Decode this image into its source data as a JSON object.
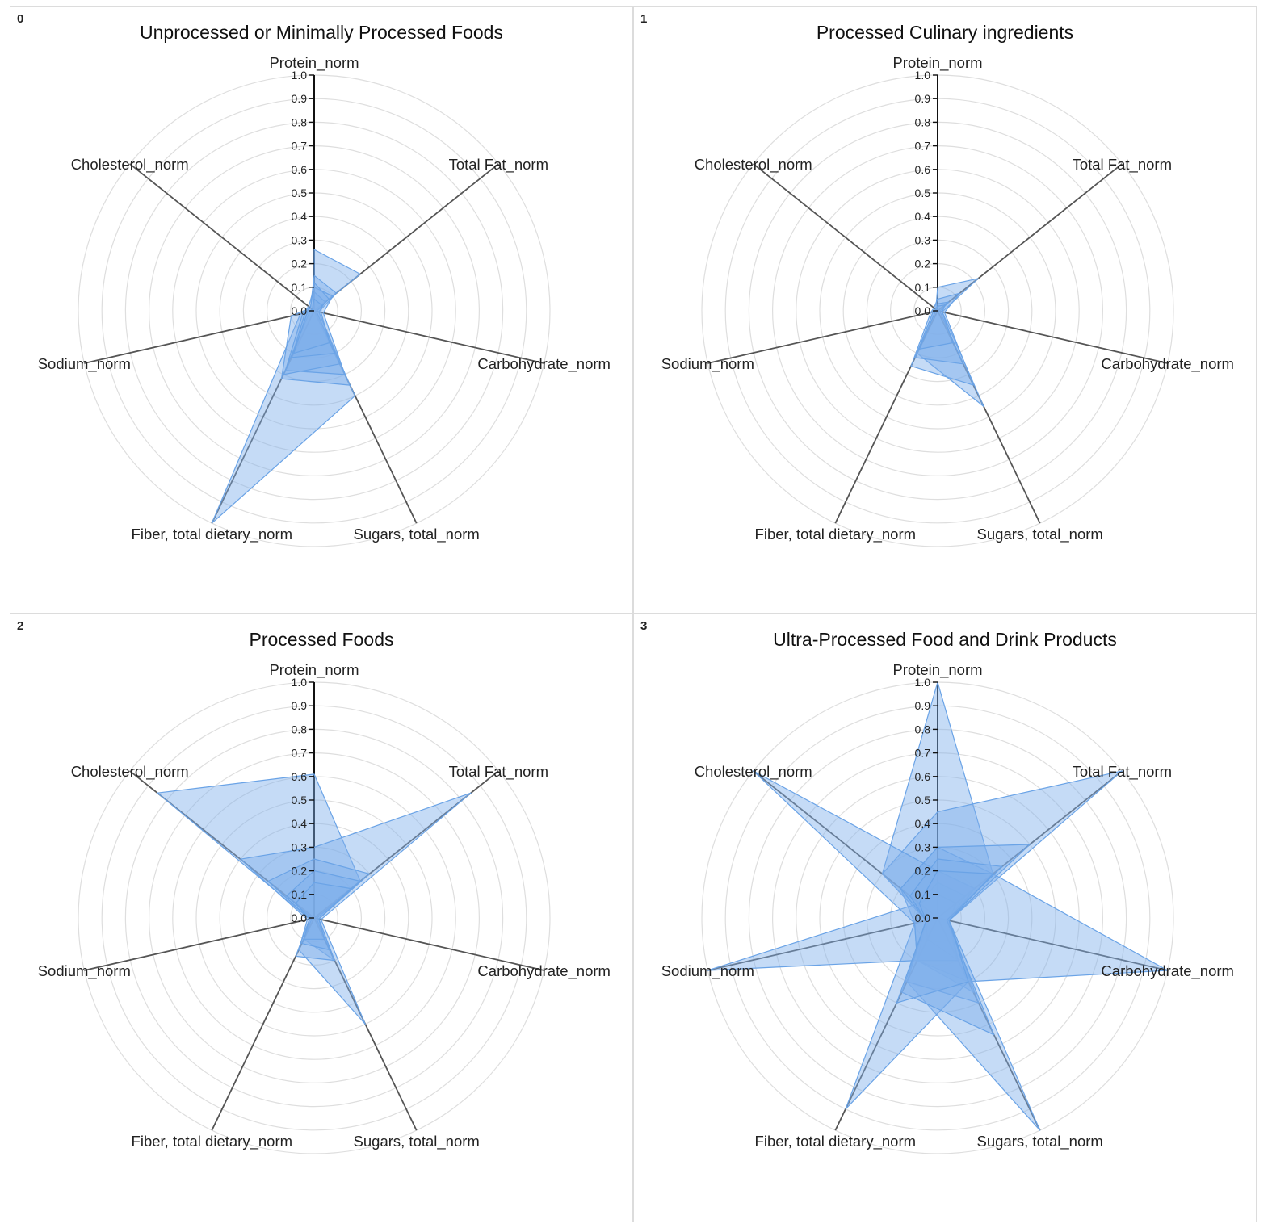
{
  "colors": {
    "series_fill": "#7fb0ea",
    "series_stroke": "#6aa3e6",
    "axis": "#555555",
    "grid": "#dedede"
  },
  "chart_data": [
    {
      "type": "radar",
      "index_label": "0",
      "title": "Unprocessed or Minimally Processed Foods",
      "axes": [
        "Protein_norm",
        "Total Fat_norm",
        "Carbohydrate_norm",
        "Sugars, total_norm",
        "Fiber, total dietary_norm",
        "Sodium_norm",
        "Cholesterol_norm"
      ],
      "ticks": [
        "0.0",
        "0.1",
        "0.2",
        "0.3",
        "0.4",
        "0.5",
        "0.6",
        "0.7",
        "0.8",
        "0.9",
        "1.0"
      ],
      "range": [
        0,
        1
      ],
      "grid": true,
      "series": [
        {
          "values": [
            0.26,
            0.25,
            0.0,
            0.4,
            1.0,
            0.06,
            0.0
          ]
        },
        {
          "values": [
            0.15,
            0.12,
            0.02,
            0.35,
            0.32,
            0.1,
            0.02
          ]
        },
        {
          "values": [
            0.1,
            0.1,
            0.04,
            0.3,
            0.28,
            0.05,
            0.03
          ]
        },
        {
          "values": [
            0.08,
            0.06,
            0.02,
            0.25,
            0.3,
            0.02,
            0.01
          ]
        },
        {
          "values": [
            0.12,
            0.08,
            0.01,
            0.2,
            0.22,
            0.04,
            0.02
          ]
        },
        {
          "values": [
            0.05,
            0.04,
            0.03,
            0.15,
            0.2,
            0.03,
            0.01
          ]
        }
      ]
    },
    {
      "type": "radar",
      "index_label": "1",
      "title": "Processed Culinary ingredients",
      "axes": [
        "Protein_norm",
        "Total Fat_norm",
        "Carbohydrate_norm",
        "Sugars, total_norm",
        "Fiber, total dietary_norm",
        "Sodium_norm",
        "Cholesterol_norm"
      ],
      "ticks": [
        "0.0",
        "0.1",
        "0.2",
        "0.3",
        "0.4",
        "0.5",
        "0.6",
        "0.7",
        "0.8",
        "0.9",
        "1.0"
      ],
      "range": [
        0,
        1
      ],
      "grid": true,
      "series": [
        {
          "values": [
            0.1,
            0.22,
            0.02,
            0.45,
            0.2,
            0.02,
            0.01
          ]
        },
        {
          "values": [
            0.05,
            0.12,
            0.03,
            0.35,
            0.26,
            0.03,
            0.02
          ]
        },
        {
          "values": [
            0.03,
            0.06,
            0.01,
            0.25,
            0.22,
            0.02,
            0.0
          ]
        },
        {
          "values": [
            0.02,
            0.04,
            0.02,
            0.15,
            0.18,
            0.01,
            0.01
          ]
        }
      ]
    },
    {
      "type": "radar",
      "index_label": "2",
      "title": "Processed Foods",
      "axes": [
        "Protein_norm",
        "Total Fat_norm",
        "Carbohydrate_norm",
        "Sugars, total_norm",
        "Fiber, total dietary_norm",
        "Sodium_norm",
        "Cholesterol_norm"
      ],
      "ticks": [
        "0.0",
        "0.1",
        "0.2",
        "0.3",
        "0.4",
        "0.5",
        "0.6",
        "0.7",
        "0.8",
        "0.9",
        "1.0"
      ],
      "range": [
        0,
        1
      ],
      "grid": true,
      "series": [
        {
          "values": [
            0.61,
            0.25,
            0.02,
            0.2,
            0.1,
            0.02,
            0.85
          ]
        },
        {
          "values": [
            0.3,
            0.85,
            0.03,
            0.5,
            0.15,
            0.03,
            0.4
          ]
        },
        {
          "values": [
            0.25,
            0.3,
            0.02,
            0.2,
            0.18,
            0.02,
            0.25
          ]
        },
        {
          "values": [
            0.2,
            0.25,
            0.01,
            0.15,
            0.12,
            0.01,
            0.15
          ]
        },
        {
          "values": [
            0.15,
            0.2,
            0.02,
            0.1,
            0.1,
            0.02,
            0.1
          ]
        }
      ]
    },
    {
      "type": "radar",
      "index_label": "3",
      "title": "Ultra-Processed Food and Drink Products",
      "axes": [
        "Protein_norm",
        "Total Fat_norm",
        "Carbohydrate_norm",
        "Sugars, total_norm",
        "Fiber, total dietary_norm",
        "Sodium_norm",
        "Cholesterol_norm"
      ],
      "ticks": [
        "0.0",
        "0.1",
        "0.2",
        "0.3",
        "0.4",
        "0.5",
        "0.6",
        "0.7",
        "0.8",
        "0.9",
        "1.0"
      ],
      "range": [
        0,
        1
      ],
      "grid": true,
      "series": [
        {
          "values": [
            1.0,
            0.3,
            0.04,
            0.2,
            0.1,
            0.05,
            0.3
          ]
        },
        {
          "values": [
            0.45,
            1.0,
            0.05,
            0.35,
            0.2,
            0.05,
            0.3
          ]
        },
        {
          "values": [
            0.3,
            0.3,
            1.0,
            0.3,
            0.2,
            0.1,
            0.2
          ]
        },
        {
          "values": [
            0.2,
            0.2,
            0.05,
            1.0,
            0.3,
            0.05,
            0.1
          ]
        },
        {
          "values": [
            0.15,
            0.15,
            0.05,
            0.3,
            0.9,
            0.1,
            0.1
          ]
        },
        {
          "values": [
            0.1,
            0.1,
            0.05,
            0.2,
            0.2,
            1.0,
            0.1
          ]
        },
        {
          "values": [
            0.2,
            0.2,
            0.05,
            0.2,
            0.2,
            0.1,
            1.0
          ]
        },
        {
          "values": [
            0.3,
            0.5,
            0.05,
            0.4,
            0.3,
            0.05,
            0.2
          ]
        },
        {
          "values": [
            0.25,
            0.35,
            0.04,
            0.55,
            0.35,
            0.05,
            0.15
          ]
        },
        {
          "values": [
            0.2,
            0.3,
            0.05,
            0.3,
            0.4,
            0.05,
            0.1
          ]
        }
      ]
    }
  ]
}
